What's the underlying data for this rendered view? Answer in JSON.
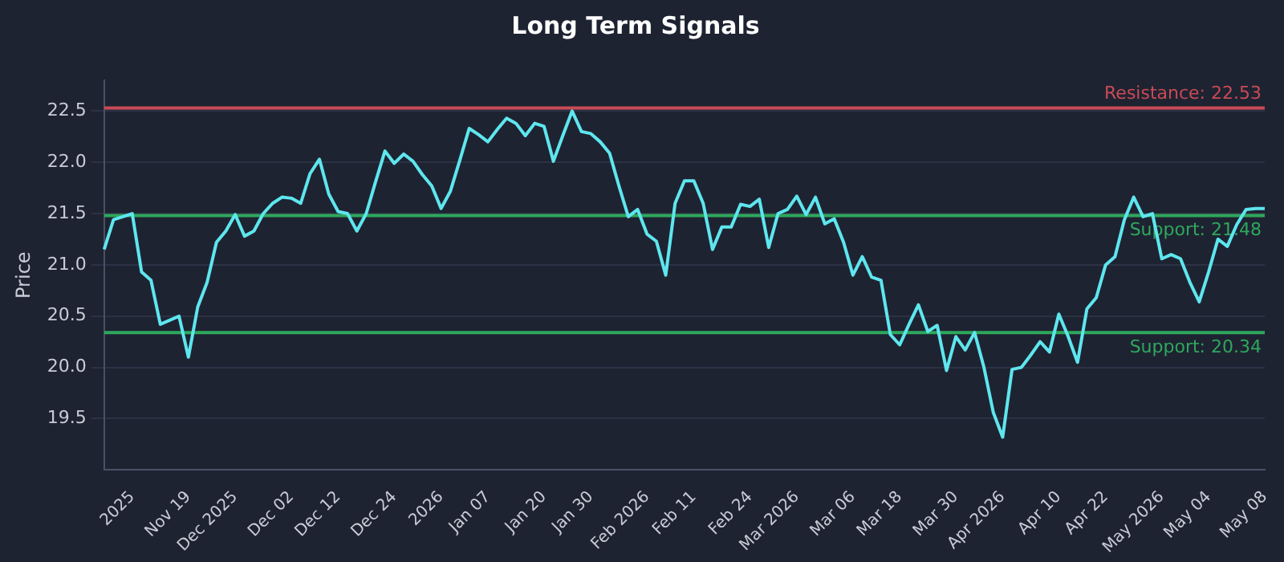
{
  "chart_data": {
    "type": "line",
    "title": "Long Term Signals",
    "ylabel": "Price",
    "categories": [
      null,
      null,
      null,
      "2025",
      null,
      null,
      null,
      null,
      null,
      "Nov 19",
      null,
      null,
      null,
      null,
      "Dec 2025",
      null,
      null,
      null,
      null,
      null,
      "Dec 02",
      null,
      null,
      null,
      null,
      "Dec 12",
      null,
      null,
      null,
      null,
      null,
      "Dec 24",
      null,
      null,
      null,
      null,
      "2026",
      null,
      null,
      null,
      null,
      "Jan 07",
      null,
      null,
      null,
      null,
      null,
      "Jan 20",
      null,
      null,
      null,
      null,
      "Jan 30",
      null,
      null,
      null,
      null,
      null,
      "Feb 2026",
      null,
      null,
      null,
      null,
      "Feb 11",
      null,
      null,
      null,
      null,
      null,
      "Feb 24",
      null,
      null,
      null,
      null,
      "Mar 2026",
      null,
      null,
      null,
      null,
      null,
      "Mar 06",
      null,
      null,
      null,
      null,
      "Mar 18",
      null,
      null,
      null,
      null,
      null,
      "Mar 30",
      null,
      null,
      null,
      null,
      "Apr 2026",
      null,
      null,
      null,
      null,
      null,
      "Apr 10",
      null,
      null,
      null,
      null,
      "Apr 22",
      null,
      null,
      null,
      null,
      null,
      "May 2026",
      null,
      null,
      null,
      null,
      "May 04",
      null,
      null,
      null,
      null,
      null,
      "May 08"
    ],
    "series": [
      {
        "color": "#5ee6ee",
        "values": [
          21.15,
          21.44,
          21.47,
          21.5,
          20.93,
          20.85,
          20.42,
          20.46,
          20.5,
          20.1,
          20.59,
          20.83,
          21.22,
          21.33,
          21.49,
          21.28,
          21.33,
          21.5,
          21.6,
          21.66,
          21.65,
          21.6,
          21.89,
          22.03,
          21.69,
          21.52,
          21.5,
          21.33,
          21.5,
          21.81,
          22.11,
          21.99,
          22.08,
          22.01,
          21.88,
          21.77,
          21.55,
          21.72,
          22.02,
          22.33,
          22.27,
          22.2,
          22.32,
          22.43,
          22.38,
          22.26,
          22.38,
          22.35,
          22.01,
          22.26,
          22.5,
          22.3,
          22.28,
          22.2,
          22.09,
          21.77,
          21.47,
          21.54,
          21.3,
          21.23,
          20.9,
          21.6,
          21.82,
          21.82,
          21.6,
          21.15,
          21.37,
          21.37,
          21.59,
          21.57,
          21.64,
          21.17,
          21.5,
          21.54,
          21.67,
          21.49,
          21.66,
          21.4,
          21.45,
          21.22,
          20.9,
          21.08,
          20.88,
          20.85,
          20.32,
          20.22,
          20.42,
          20.61,
          20.35,
          20.41,
          19.97,
          20.3,
          20.17,
          20.34,
          20.0,
          19.56,
          19.32,
          19.98,
          20.0,
          20.12,
          20.25,
          20.15,
          20.52,
          20.3,
          20.05,
          20.57,
          20.68,
          21.0,
          21.08,
          21.44,
          21.66,
          21.47,
          21.5,
          21.06,
          21.1,
          21.06,
          20.83,
          20.64,
          20.93,
          21.25,
          21.18,
          21.39,
          21.54,
          21.55,
          21.55
        ]
      }
    ],
    "ylim": [
      19.0,
      22.8
    ],
    "yticks": [
      19.5,
      {
        "value": 20,
        "label": "20.0"
      },
      20.5,
      {
        "value": 21,
        "label": "21.0"
      },
      21.5,
      {
        "value": 22,
        "label": "22.0"
      },
      22.5
    ],
    "ref_lines": [
      {
        "axis": "y",
        "value": 22.53,
        "label": "Resistance: 22.53",
        "color": "#c94a55"
      },
      {
        "axis": "y",
        "value": 21.48,
        "label": "Support: 21.48",
        "color": "#2ea85c"
      },
      {
        "axis": "y",
        "value": 20.34,
        "label": "Support: 20.34",
        "color": "#2ea85c"
      }
    ],
    "grid": "y",
    "legend": false,
    "marker": "none",
    "line_style": "solid"
  }
}
